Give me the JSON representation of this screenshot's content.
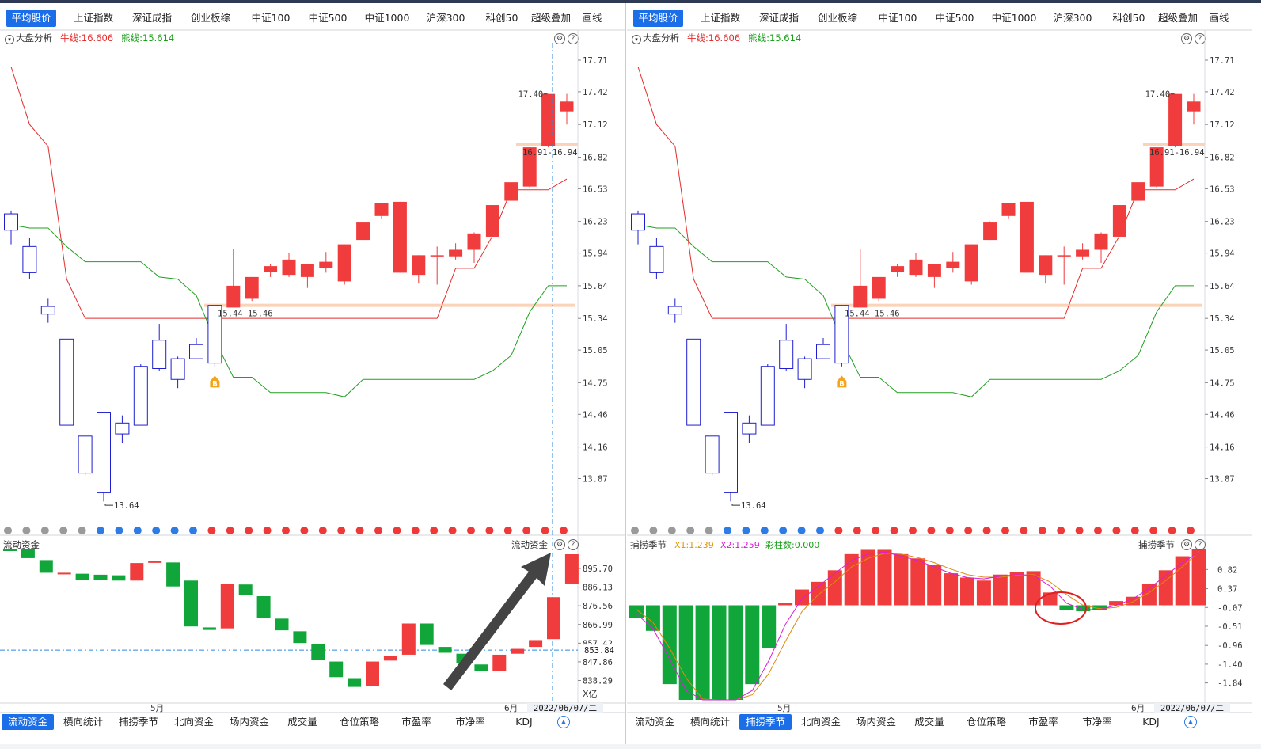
{
  "top_tabs": [
    "平均股价",
    "上证指数",
    "深证成指",
    "创业板综",
    "中证100",
    "中证500",
    "中证1000",
    "沪深300",
    "科创50",
    "超级叠加",
    "画线"
  ],
  "bottom_tabs": [
    "流动资金",
    "横向统计",
    "捕捞季节",
    "北向资金",
    "场内资金",
    "成交量",
    "仓位策略",
    "市盈率",
    "市净率",
    "KDJ"
  ],
  "main_chart": {
    "title": "大盘分析",
    "bull_line": "牛线:16.606",
    "bear_line": "熊线:15.614",
    "y_ticks": [
      "17.71",
      "17.42",
      "17.12",
      "16.82",
      "16.53",
      "16.23",
      "15.94",
      "15.64",
      "15.34",
      "15.05",
      "14.75",
      "14.46",
      "14.16",
      "13.87"
    ],
    "low_label": "13.64",
    "high_label": "17.40",
    "range_label_high": "16.91-16.94",
    "range_label_low": "15.44-15.46",
    "buy_marker": "B"
  },
  "left_sub": {
    "title": "流动资金",
    "title_right": "流动资金",
    "y_ticks": [
      "895.70",
      "886.13",
      "876.56",
      "866.99",
      "857.42",
      "847.86",
      "838.29"
    ],
    "crosshair_value": "853.84",
    "unit": "X亿",
    "month_may": "5月",
    "month_jun": "6月",
    "date": "2022/06/07/二"
  },
  "right_sub": {
    "title": "捕捞季节",
    "title_right": "捕捞季节",
    "x1": "X1:1.239",
    "x2": "X2:1.259",
    "caizhu": "彩柱数:0.000",
    "y_ticks": [
      "0.82",
      "0.37",
      "-0.07",
      "-0.51",
      "-0.96",
      "-1.40",
      "-1.84"
    ],
    "month_may": "5月",
    "month_jun": "6月",
    "date": "2022/06/07/二"
  },
  "colors": {
    "up": "#f03c3c",
    "down_hollow": "#1e1ecf",
    "bull": "#e52b2b",
    "bear": "#20a020",
    "flow_green": "#11a63a",
    "accent": "#1b6ee8"
  },
  "candles": [
    {
      "o": 16.15,
      "c": 16.3,
      "h": 16.33,
      "l": 16.02
    },
    {
      "o": 15.76,
      "c": 16.0,
      "h": 16.08,
      "l": 15.7
    },
    {
      "o": 15.38,
      "c": 15.45,
      "h": 15.52,
      "l": 15.3
    },
    {
      "o": 14.36,
      "c": 15.15,
      "h": 15.15,
      "l": 14.36
    },
    {
      "o": 13.92,
      "c": 14.26,
      "h": 14.26,
      "l": 13.9
    },
    {
      "o": 13.74,
      "c": 14.48,
      "h": 14.48,
      "l": 13.66
    },
    {
      "o": 14.28,
      "c": 14.38,
      "h": 14.45,
      "l": 14.2
    },
    {
      "o": 14.36,
      "c": 14.9,
      "h": 14.92,
      "l": 14.36
    },
    {
      "o": 14.88,
      "c": 15.14,
      "h": 15.29,
      "l": 14.86
    },
    {
      "o": 14.78,
      "c": 14.97,
      "h": 14.99,
      "l": 14.7
    },
    {
      "o": 14.97,
      "c": 15.1,
      "h": 15.16,
      "l": 14.97
    },
    {
      "o": 14.93,
      "c": 15.46,
      "h": 15.46,
      "l": 14.9
    },
    {
      "o": 15.44,
      "c": 15.64,
      "h": 15.98,
      "l": 15.44
    },
    {
      "o": 15.52,
      "c": 15.72,
      "h": 15.72,
      "l": 15.5
    },
    {
      "o": 15.77,
      "c": 15.82,
      "h": 15.84,
      "l": 15.72
    },
    {
      "o": 15.74,
      "c": 15.88,
      "h": 15.94,
      "l": 15.72
    },
    {
      "o": 15.72,
      "c": 15.84,
      "h": 15.84,
      "l": 15.62
    },
    {
      "o": 15.8,
      "c": 15.86,
      "h": 15.95,
      "l": 15.76
    },
    {
      "o": 15.68,
      "c": 16.02,
      "h": 16.02,
      "l": 15.65
    },
    {
      "o": 16.06,
      "c": 16.22,
      "h": 16.23,
      "l": 16.06
    },
    {
      "o": 16.28,
      "c": 16.4,
      "h": 16.4,
      "l": 16.25
    },
    {
      "o": 16.41,
      "c": 15.76,
      "h": 16.41,
      "l": 15.76
    },
    {
      "o": 15.92,
      "c": 15.74,
      "h": 15.92,
      "l": 15.66
    },
    {
      "o": 15.91,
      "c": 15.92,
      "h": 16.0,
      "l": 15.65
    },
    {
      "o": 15.91,
      "c": 15.97,
      "h": 16.03,
      "l": 15.88
    },
    {
      "o": 15.97,
      "c": 16.12,
      "h": 16.13,
      "l": 15.85
    },
    {
      "o": 16.09,
      "c": 16.38,
      "h": 16.38,
      "l": 16.09
    },
    {
      "o": 16.42,
      "c": 16.59,
      "h": 16.59,
      "l": 16.42
    },
    {
      "o": 16.55,
      "c": 16.91,
      "h": 16.91,
      "l": 16.54
    },
    {
      "o": 16.92,
      "c": 17.4,
      "h": 17.4,
      "l": 16.91
    },
    {
      "o": 17.24,
      "c": 17.33,
      "h": 17.4,
      "l": 17.12
    }
  ],
  "bull_series": [
    17.65,
    17.12,
    16.92,
    15.7,
    15.34,
    15.34,
    15.34,
    15.34,
    15.34,
    15.34,
    15.34,
    15.34,
    15.34,
    15.34,
    15.34,
    15.34,
    15.34,
    15.34,
    15.34,
    15.34,
    15.34,
    15.34,
    15.34,
    15.34,
    15.8,
    15.8,
    16.1,
    16.52,
    16.52,
    16.52,
    16.62
  ],
  "bear_series": [
    16.2,
    16.17,
    16.17,
    16.0,
    15.86,
    15.86,
    15.86,
    15.86,
    15.72,
    15.7,
    15.55,
    15.14,
    14.8,
    14.8,
    14.66,
    14.66,
    14.66,
    14.66,
    14.62,
    14.78,
    14.78,
    14.78,
    14.78,
    14.78,
    14.78,
    14.78,
    14.86,
    15.0,
    15.4,
    15.64,
    15.64
  ],
  "flow_bars": [
    {
      "o": 912.0,
      "c": 906.5
    },
    {
      "o": 905.5,
      "c": 901.0
    },
    {
      "o": 900.0,
      "c": 893.5
    },
    {
      "o": 893.0,
      "c": 893.5
    },
    {
      "o": 893.0,
      "c": 890.0
    },
    {
      "o": 892.5,
      "c": 890.0
    },
    {
      "o": 892.2,
      "c": 889.5
    },
    {
      "o": 889.5,
      "c": 898.5
    },
    {
      "o": 898.6,
      "c": 899.5
    },
    {
      "o": 898.8,
      "c": 886.5
    },
    {
      "o": 889.5,
      "c": 866.0
    },
    {
      "o": 865.5,
      "c": 864.2
    },
    {
      "o": 865.0,
      "c": 887.6
    },
    {
      "o": 887.5,
      "c": 882.0
    },
    {
      "o": 881.5,
      "c": 870.5
    },
    {
      "o": 870.0,
      "c": 864.0
    },
    {
      "o": 863.5,
      "c": 857.5
    },
    {
      "o": 857.0,
      "c": 849.0
    },
    {
      "o": 848.0,
      "c": 840.0
    },
    {
      "o": 839.5,
      "c": 835.0
    },
    {
      "o": 835.5,
      "c": 848.0
    },
    {
      "o": 848.5,
      "c": 851.0
    },
    {
      "o": 851.5,
      "c": 867.5
    },
    {
      "o": 867.5,
      "c": 856.5
    },
    {
      "o": 855.5,
      "c": 852.5
    },
    {
      "o": 852.0,
      "c": 847.0
    },
    {
      "o": 846.5,
      "c": 843.0
    },
    {
      "o": 843.0,
      "c": 851.5
    },
    {
      "o": 852.0,
      "c": 854.5
    },
    {
      "o": 855.5,
      "c": 859.0
    },
    {
      "o": 859.5,
      "c": 881.0
    },
    {
      "o": 888.0,
      "c": 903.0
    }
  ],
  "season_bars": [
    -0.3,
    -0.6,
    -1.85,
    -2.4,
    -2.65,
    -2.6,
    -2.4,
    -1.85,
    -1.0,
    0.05,
    0.37,
    0.55,
    0.82,
    1.2,
    1.3,
    1.3,
    1.2,
    1.1,
    0.95,
    0.75,
    0.65,
    0.58,
    0.72,
    0.78,
    0.8,
    0.3,
    -0.12,
    -0.14,
    -0.12,
    0.1,
    0.2,
    0.5,
    0.82,
    1.15,
    1.45
  ],
  "season_x1": [
    -0.2,
    -0.55,
    -1.25,
    -2.0,
    -2.4,
    -2.55,
    -2.4,
    -2.0,
    -1.3,
    -0.45,
    0.15,
    0.45,
    0.75,
    1.05,
    1.2,
    1.25,
    1.15,
    1.05,
    0.9,
    0.75,
    0.65,
    0.62,
    0.68,
    0.72,
    0.7,
    0.45,
    0.05,
    -0.1,
    -0.1,
    0.0,
    0.15,
    0.4,
    0.7,
    1.0,
    1.24
  ],
  "season_x2": [
    -0.1,
    -0.4,
    -1.0,
    -1.7,
    -2.2,
    -2.45,
    -2.4,
    -2.1,
    -1.6,
    -0.85,
    -0.15,
    0.25,
    0.55,
    0.9,
    1.1,
    1.22,
    1.2,
    1.12,
    1.0,
    0.85,
    0.72,
    0.66,
    0.66,
    0.7,
    0.72,
    0.55,
    0.25,
    0.0,
    -0.08,
    -0.05,
    0.08,
    0.3,
    0.58,
    0.9,
    1.26
  ]
}
